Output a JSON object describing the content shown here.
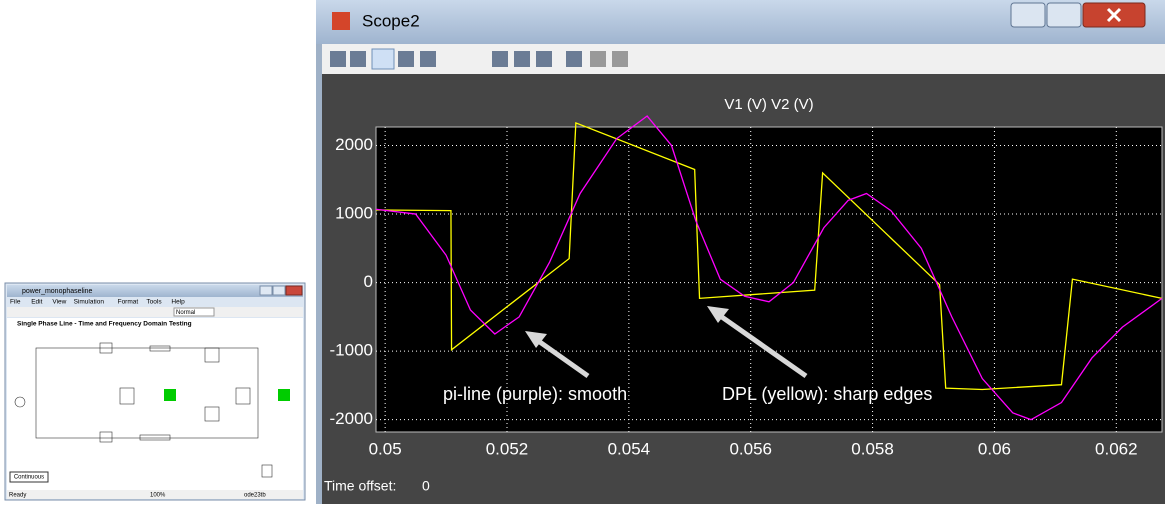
{
  "window": {
    "title": "Scope2",
    "time_offset_label": "Time offset:",
    "time_offset": "0"
  },
  "simulink": {
    "title": "power_monophaseline",
    "menu": [
      "File",
      "Edit",
      "View",
      "Simulation",
      "Format",
      "Tools",
      "Help"
    ],
    "zoom": "Normal",
    "heading": "Single Phase Line - Time and Frequency Domain Testing",
    "button": "Continuous",
    "status": [
      "Ready",
      "100%",
      "ode23tb"
    ]
  },
  "chart_data": {
    "type": "line",
    "title": "V1 (V) V2 (V)",
    "annotations": [
      "pi-line (purple): smooth",
      "DPL (yellow): sharp edges"
    ],
    "xlim": [
      0.04985,
      0.06275
    ],
    "ylim": [
      -2180,
      2270
    ],
    "xticks": [
      0.05,
      0.052,
      0.054,
      0.056,
      0.058,
      0.06,
      0.062
    ],
    "yticks": [
      -2000,
      -1000,
      0,
      1000,
      2000
    ],
    "grid": true,
    "series": [
      {
        "color": "#ffff00",
        "x": [
          0.04985,
          0.05108,
          0.05109,
          0.05302,
          0.05313,
          0.05508,
          0.05516,
          0.05705,
          0.05718,
          0.0591,
          0.0592,
          0.0598,
          0.0611,
          0.06128,
          0.06275
        ],
        "values": [
          1060,
          1050,
          -980,
          350,
          2330,
          1650,
          -230,
          -110,
          1600,
          -30,
          -1540,
          -1560,
          -1490,
          50,
          -230
        ]
      },
      {
        "color": "#ff00ff",
        "x": [
          0.04985,
          0.0505,
          0.051,
          0.0514,
          0.0518,
          0.0522,
          0.0527,
          0.0532,
          0.0538,
          0.0543,
          0.0547,
          0.0551,
          0.0555,
          0.0559,
          0.0563,
          0.0567,
          0.0572,
          0.0576,
          0.0579,
          0.0583,
          0.0588,
          0.0593,
          0.0598,
          0.0603,
          0.0606,
          0.0611,
          0.0616,
          0.0621,
          0.06275
        ],
        "values": [
          1070,
          1000,
          400,
          -400,
          -750,
          -500,
          300,
          1300,
          2100,
          2430,
          2000,
          900,
          50,
          -200,
          -280,
          0,
          800,
          1200,
          1300,
          1050,
          500,
          -500,
          -1400,
          -1900,
          -2000,
          -1750,
          -1100,
          -650,
          -230
        ]
      }
    ]
  }
}
